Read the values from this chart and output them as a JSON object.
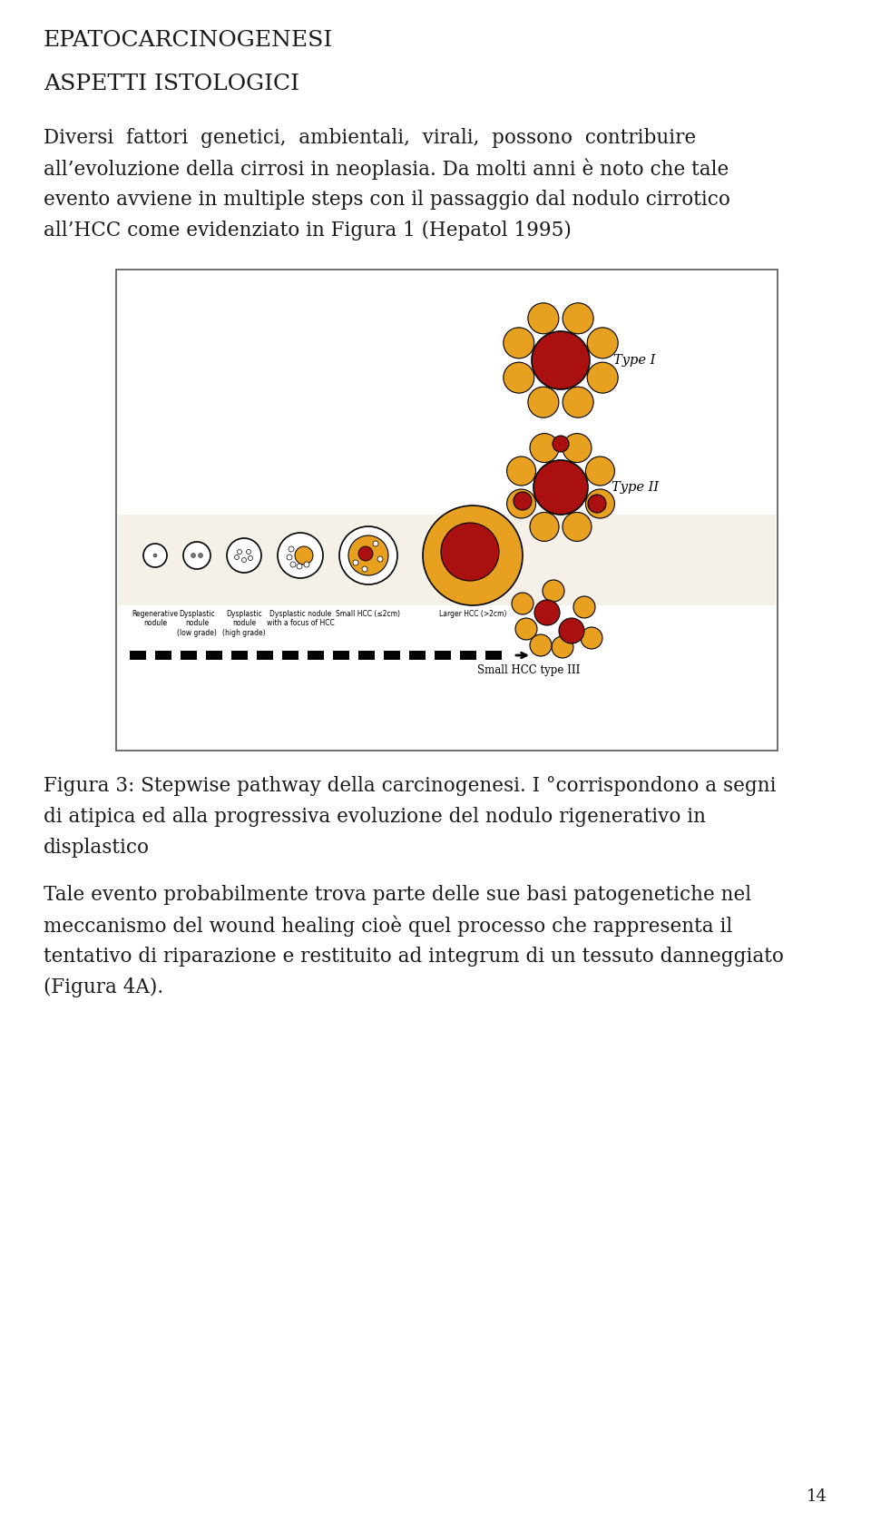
{
  "title": "EPATOCARCINOGENESI",
  "subtitle": "ASPETTI ISTOLOGICI",
  "lines_p1": [
    "Diversi  fattori  genetici,  ambientali,  virali,  possono  contribuire",
    "all’evoluzione della cirrosi in neoplasia. Da molti anni è noto che tale",
    "evento avviene in multiple steps con il passaggio dal nodulo cirrotico",
    "all’HCC come evidenziato in Figura 1 (Hepatol 1995)"
  ],
  "cap_lines": [
    "Figura 3: Stepwise pathway della carcinogenesi. I °corrispondono a segni",
    "di atipica ed alla progressiva evoluzione del nodulo rigenerativo in",
    "displastico"
  ],
  "para2_lines": [
    "Tale evento probabilmente trova parte delle sue basi patogenetiche nel",
    "meccanismo del wound healing cioè quel processo che rappresenta il",
    "tentativo di riparazione e restituito ad integrum di un tessuto danneggiato",
    "(Figura 4A)."
  ],
  "page_num": "14",
  "bg_color": "#ffffff",
  "text_color": "#1a1a1a",
  "orange_color": "#E8A020",
  "red_color": "#AA1010",
  "light_orange": "#F0B030"
}
